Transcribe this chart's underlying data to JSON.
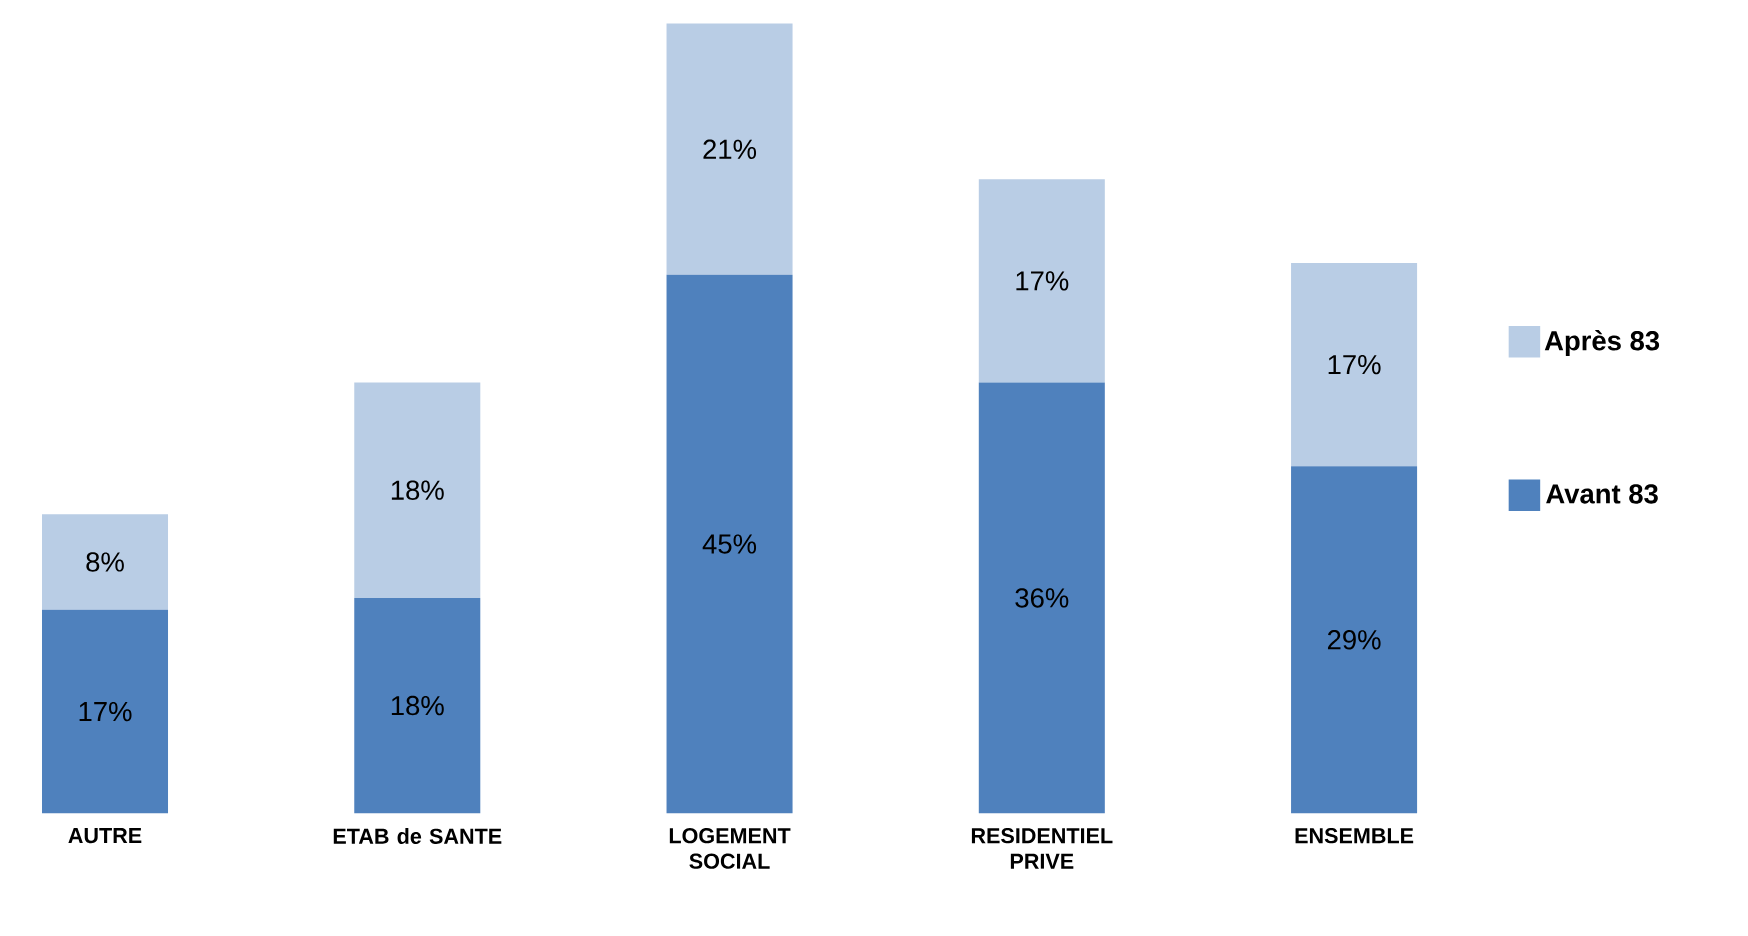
{
  "chart_data": {
    "type": "bar",
    "stacked": true,
    "legend": "right",
    "categories": [
      "AUTRE",
      "ETAB de SANTE",
      "LOGEMENT SOCIAL",
      "RESIDENTIEL PRIVE",
      "ENSEMBLE"
    ],
    "series": [
      {
        "name": "Avant 83",
        "color": "#4f81bd",
        "values": [
          17,
          18,
          45,
          36,
          29
        ],
        "value_labels": [
          "17%",
          "18%",
          "45%",
          "36%",
          "29%"
        ]
      },
      {
        "name": "Après 83",
        "color": "#b9cde5",
        "values": [
          8,
          18,
          21,
          17,
          17
        ],
        "value_labels": [
          "8%",
          "18%",
          "21%",
          "17%",
          "17%"
        ]
      }
    ]
  }
}
